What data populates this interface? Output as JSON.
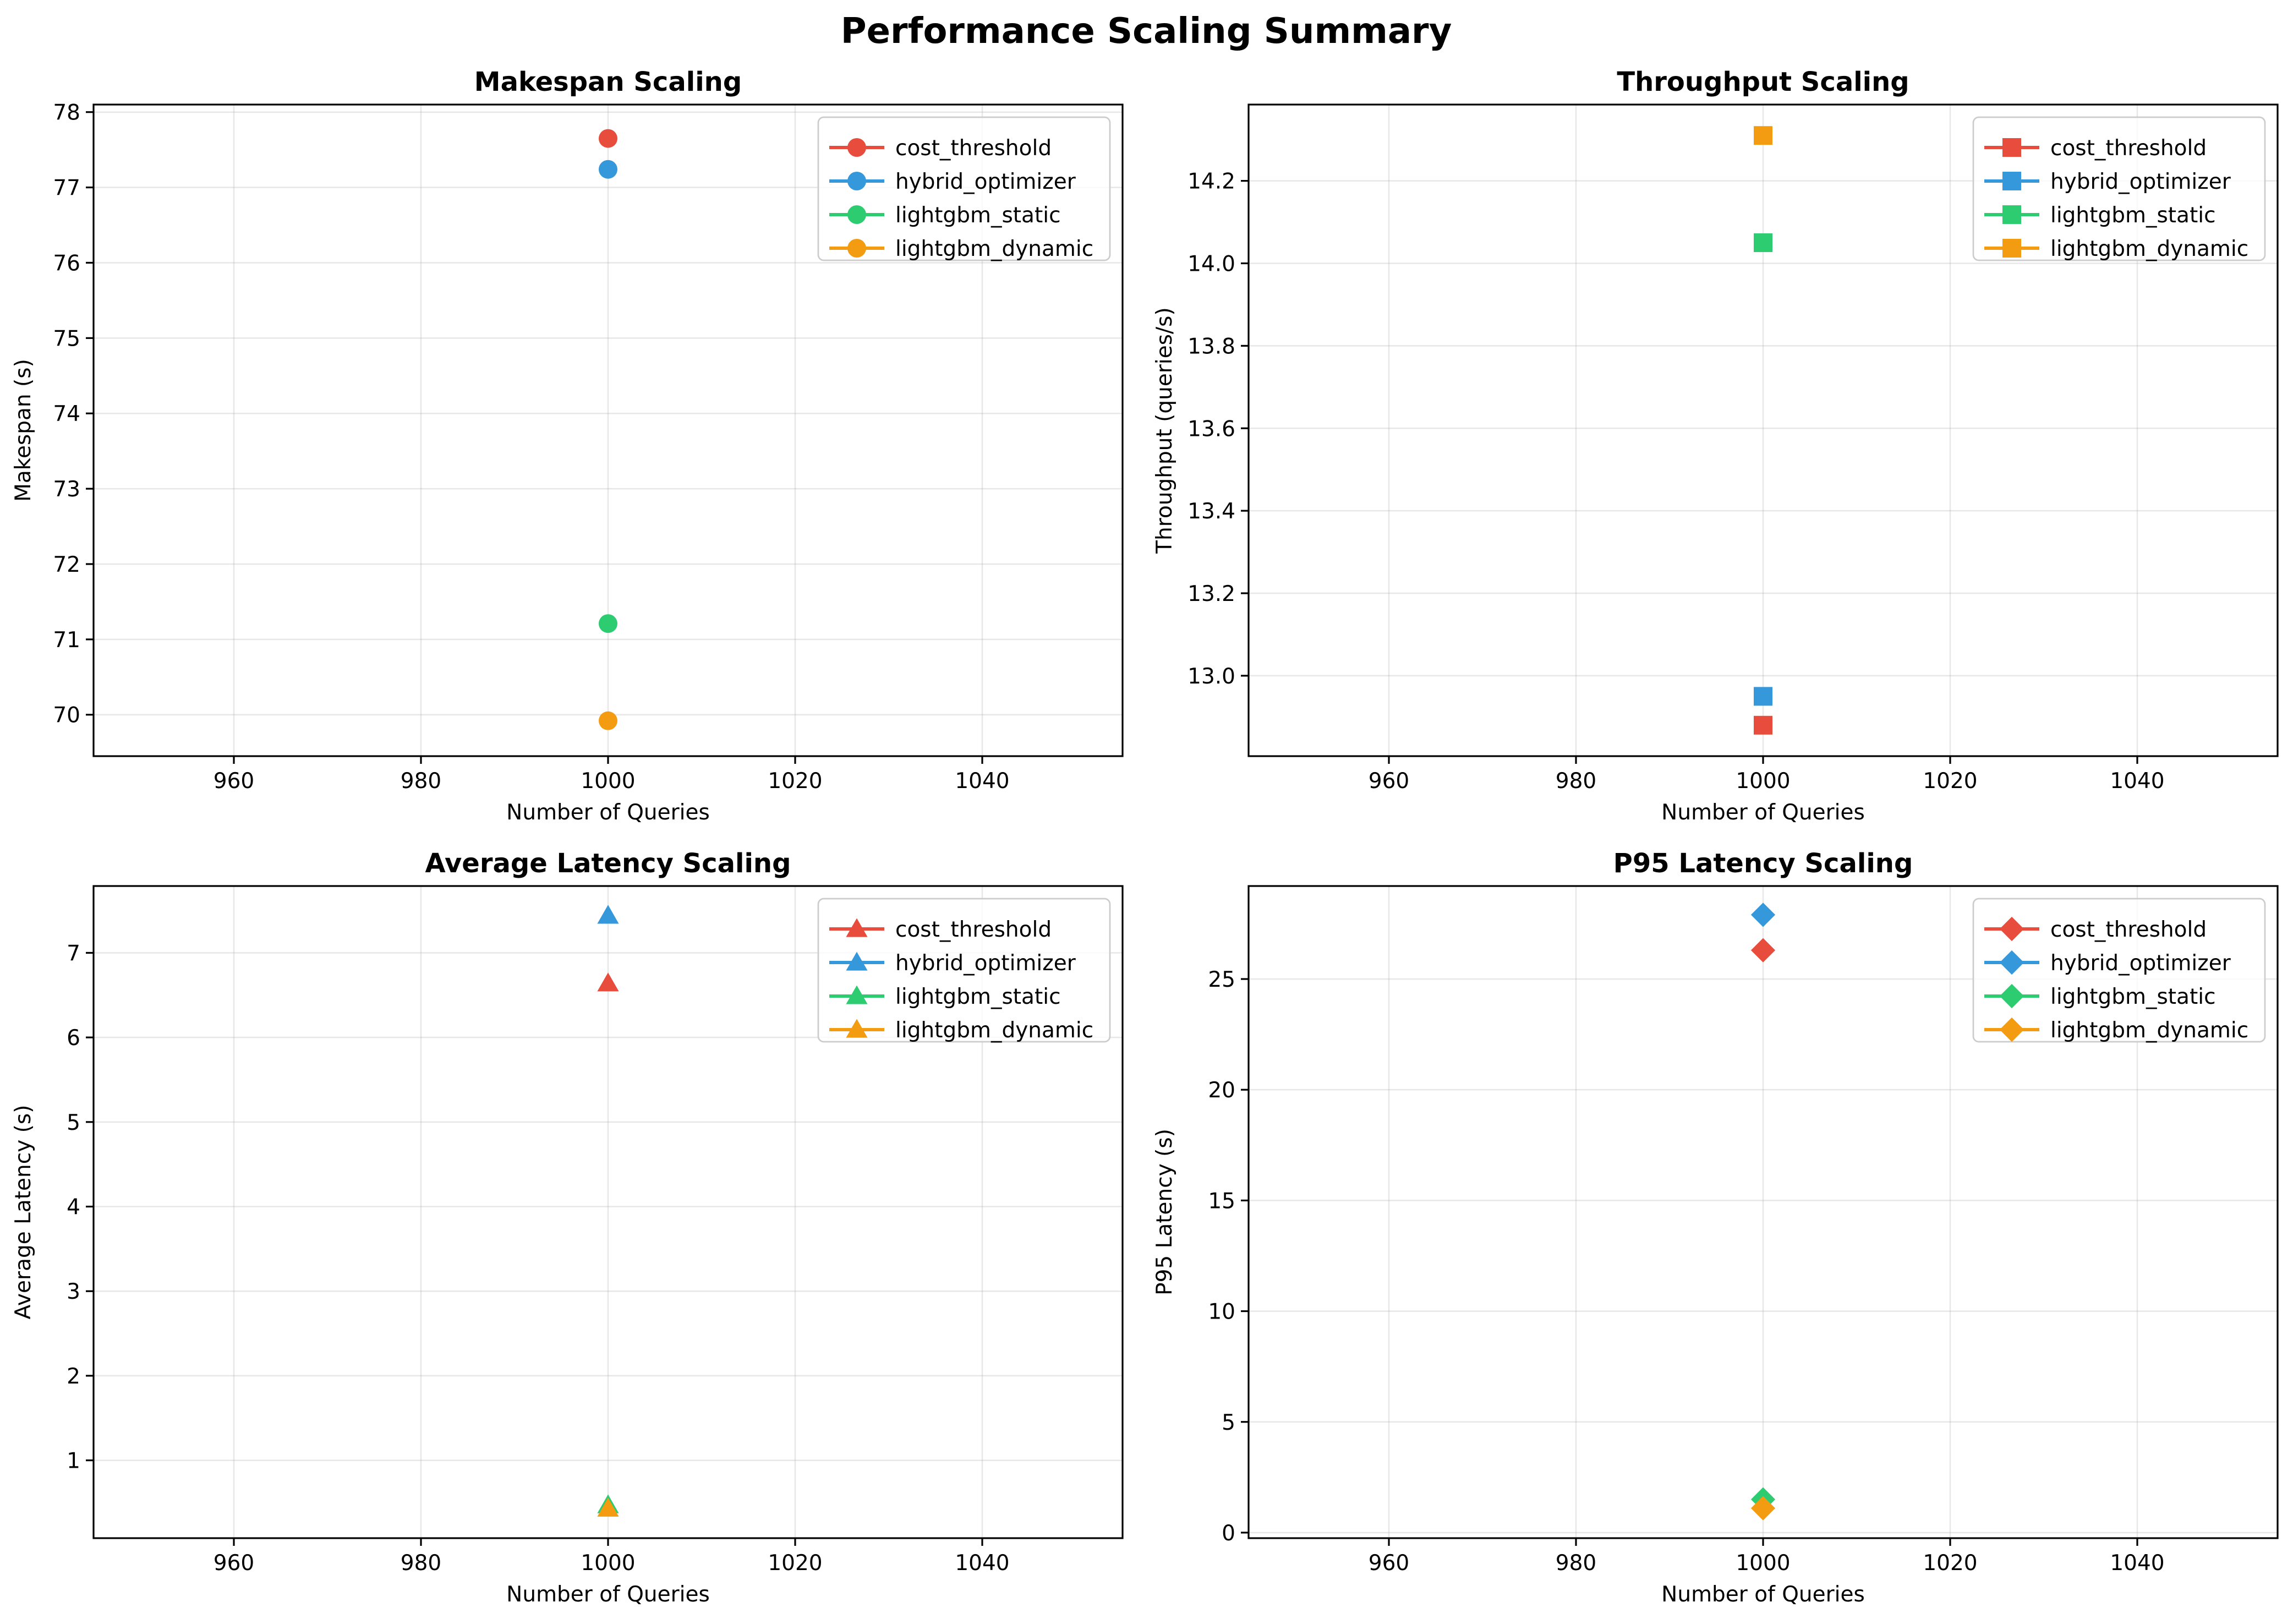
{
  "figure": {
    "title": "Performance Scaling Summary"
  },
  "chart_data": [
    {
      "type": "scatter",
      "title": "Makespan Scaling",
      "xlabel": "Number of Queries",
      "ylabel": "Makespan (s)",
      "xlim": [
        945,
        1055
      ],
      "ylim": [
        69.45,
        78.1
      ],
      "xticks": [
        960,
        980,
        1000,
        1020,
        1040
      ],
      "yticks": [
        70,
        71,
        72,
        73,
        74,
        75,
        76,
        77,
        78
      ],
      "marker": "circle",
      "grid": true,
      "legend_position": "upper-right",
      "series": [
        {
          "name": "cost_threshold",
          "color": "#e74c3c",
          "x": [
            1000
          ],
          "y": [
            77.65
          ]
        },
        {
          "name": "hybrid_optimizer",
          "color": "#3498db",
          "x": [
            1000
          ],
          "y": [
            77.24
          ]
        },
        {
          "name": "lightgbm_static",
          "color": "#2ecc71",
          "x": [
            1000
          ],
          "y": [
            71.21
          ]
        },
        {
          "name": "lightgbm_dynamic",
          "color": "#f39c12",
          "x": [
            1000
          ],
          "y": [
            69.92
          ]
        }
      ]
    },
    {
      "type": "scatter",
      "title": "Throughput Scaling",
      "xlabel": "Number of Queries",
      "ylabel": "Throughput (queries/s)",
      "xlim": [
        945,
        1055
      ],
      "ylim": [
        12.805,
        14.385
      ],
      "xticks": [
        960,
        980,
        1000,
        1020,
        1040
      ],
      "yticks": [
        13.0,
        13.2,
        13.4,
        13.6,
        13.8,
        14.0,
        14.2
      ],
      "ytick_labels": [
        "13.0",
        "13.2",
        "13.4",
        "13.6",
        "13.8",
        "14.0",
        "14.2"
      ],
      "marker": "square",
      "grid": true,
      "legend_position": "upper-right",
      "series": [
        {
          "name": "cost_threshold",
          "color": "#e74c3c",
          "x": [
            1000
          ],
          "y": [
            12.88
          ]
        },
        {
          "name": "hybrid_optimizer",
          "color": "#3498db",
          "x": [
            1000
          ],
          "y": [
            12.95
          ]
        },
        {
          "name": "lightgbm_static",
          "color": "#2ecc71",
          "x": [
            1000
          ],
          "y": [
            14.05
          ]
        },
        {
          "name": "lightgbm_dynamic",
          "color": "#f39c12",
          "x": [
            1000
          ],
          "y": [
            14.31
          ]
        }
      ]
    },
    {
      "type": "scatter",
      "title": "Average Latency Scaling",
      "xlabel": "Number of Queries",
      "ylabel": "Average Latency (s)",
      "xlim": [
        945,
        1055
      ],
      "ylim": [
        0.08,
        7.79
      ],
      "xticks": [
        960,
        980,
        1000,
        1020,
        1040
      ],
      "yticks": [
        1,
        2,
        3,
        4,
        5,
        6,
        7
      ],
      "marker": "triangle",
      "grid": true,
      "legend_position": "upper-right",
      "series": [
        {
          "name": "cost_threshold",
          "color": "#e74c3c",
          "x": [
            1000
          ],
          "y": [
            6.64
          ]
        },
        {
          "name": "hybrid_optimizer",
          "color": "#3498db",
          "x": [
            1000
          ],
          "y": [
            7.44
          ]
        },
        {
          "name": "lightgbm_static",
          "color": "#2ecc71",
          "x": [
            1000
          ],
          "y": [
            0.47
          ]
        },
        {
          "name": "lightgbm_dynamic",
          "color": "#f39c12",
          "x": [
            1000
          ],
          "y": [
            0.43
          ]
        }
      ]
    },
    {
      "type": "scatter",
      "title": "P95 Latency Scaling",
      "xlabel": "Number of Queries",
      "ylabel": "P95 Latency (s)",
      "xlim": [
        945,
        1055
      ],
      "ylim": [
        -0.25,
        29.2
      ],
      "xticks": [
        960,
        980,
        1000,
        1020,
        1040
      ],
      "yticks": [
        0,
        5,
        10,
        15,
        20,
        25
      ],
      "marker": "diamond",
      "grid": true,
      "legend_position": "upper-right",
      "series": [
        {
          "name": "cost_threshold",
          "color": "#e74c3c",
          "x": [
            1000
          ],
          "y": [
            26.3
          ]
        },
        {
          "name": "hybrid_optimizer",
          "color": "#3498db",
          "x": [
            1000
          ],
          "y": [
            27.9
          ]
        },
        {
          "name": "lightgbm_static",
          "color": "#2ecc71",
          "x": [
            1000
          ],
          "y": [
            1.5
          ]
        },
        {
          "name": "lightgbm_dynamic",
          "color": "#f39c12",
          "x": [
            1000
          ],
          "y": [
            1.1
          ]
        }
      ]
    }
  ]
}
